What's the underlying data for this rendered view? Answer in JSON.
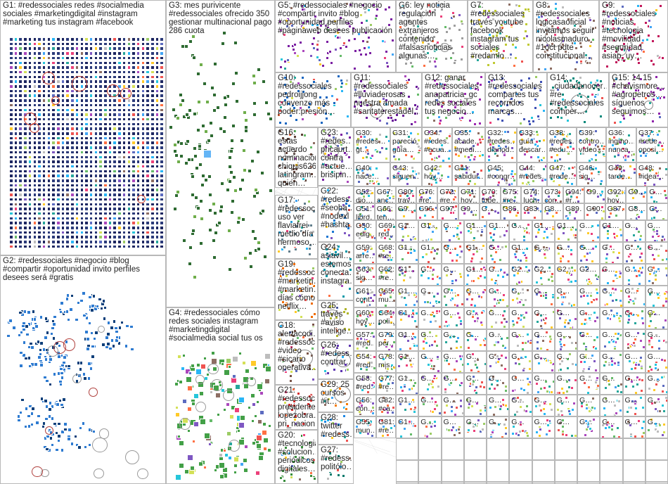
{
  "graph": {
    "groups": [
      {
        "id": "G1",
        "label": "G1: #redessociales redes #socialmedia sociales #marketingdigital #instagram #marketing tus instagram #facebook",
        "color": "#2a3a8c",
        "nodeColor": "#1d2660",
        "style": "grid",
        "rings": "#c0392b"
      },
      {
        "id": "G2",
        "label": "G2: #redessociales #negocio #blog #compartir #oportunidad invito perfiles desees será #gratis",
        "color": "#1c5aa8",
        "nodeColor": "#2e7bd1",
        "style": "clusters"
      },
      {
        "id": "G3",
        "label": "G3: mes purivicente #redessociales ofrecido 350 gestionar multinacional pago 286 cuota",
        "color": "#2e7d32",
        "nodeColor": "#3a8a3f",
        "style": "star"
      },
      {
        "id": "G4",
        "label": "G4: #redessociales cómo redes sociales instagram #marketingdigital #socialmedia social tus os",
        "color": "#2e7d32",
        "nodeColor": "#4caf50",
        "style": "cluster-scatter"
      },
      {
        "id": "G5",
        "label": "G5: #redessociales #negocio #compartir invito #blog #oportunidad perfiles #páginaweb desees publicación",
        "color": "#7b1fa2",
        "nodeColor": "#7b1fa2",
        "style": "mini"
      },
      {
        "id": "G6",
        "label": "G6: ley noticia regulación agentes extranjeros contenido #falsasnoticias algunas…",
        "color": "#444",
        "nodeColor": "#9e9e9e",
        "style": "mini"
      },
      {
        "id": "G7",
        "label": "G7: #redessociales través youtube facebook instagram tus sociales #redamlo…",
        "color": "#8e24aa",
        "nodeColor": "#c0ca33",
        "style": "mini"
      },
      {
        "id": "G8",
        "label": "G8: #redessociales logicasaoficial invitamos seguir nicolasmaduro #1oct pdte constitucional…",
        "color": "#555",
        "nodeColor": "#8d6e63",
        "style": "mini"
      },
      {
        "id": "G9",
        "label": "G9: #redessociales #noticias #tecnologia #movilidad #seguridad asiap_uy…",
        "color": "#ad1457",
        "nodeColor": "#c2185b",
        "style": "mini"
      },
      {
        "id": "G10",
        "label": "G10: #redessociales pedroijjong convenzo más poder:presión…",
        "color": "#555",
        "nodeColor": "#1565c0",
        "style": "mini"
      },
      {
        "id": "G11",
        "label": "G11: #redessociales #lluviaderosas nuestra amada #santaterestadel…",
        "color": "#6a1b9a",
        "nodeColor": "#6a1b9a",
        "style": "mini"
      },
      {
        "id": "G12",
        "label": "G12: ganar #redessociales anapatricia_gc redes sociales tus negocio…",
        "color": "#455a64",
        "nodeColor": "#9c27b0",
        "style": "mini"
      },
      {
        "id": "G13",
        "label": "G13: #redessociales compartes tus recorridos marcas…",
        "color": "#455a64",
        "nodeColor": "#3f51b5",
        "style": "mini"
      },
      {
        "id": "G14",
        "label": "G14: _ciudadanocer… #re #redessociales comper…",
        "color": "#455a64",
        "nodeColor": "#00897b",
        "style": "mini"
      },
      {
        "id": "G15",
        "label": "G15: 14 15 #chavismore… #agropetros… síguenos seguimos…",
        "color": "#455a64",
        "nodeColor": "#8e24aa",
        "style": "mini"
      },
      {
        "id": "G16",
        "label": "G16: estas acuerdo nominación chiquis626 latingram… quien…",
        "color": "#455a64",
        "nodeColor": "#5d4037",
        "style": "mini"
      },
      {
        "id": "G17",
        "label": "G17: #redessoc… uso ver flaviafrei medio día hermoso…",
        "color": "#455a64",
        "nodeColor": "#607d8b",
        "style": "mini"
      },
      {
        "id": "G18",
        "label": "G18: alertacodi… #redessoc… #video #sicario operativa…",
        "color": "#455a64",
        "nodeColor": "#795548",
        "style": "mini"
      },
      {
        "id": "G19",
        "label": "G19: #redessoc… #marketin… #marketin… días cómo netflix…",
        "color": "#455a64",
        "nodeColor": "#ef6c00",
        "style": "mini"
      },
      {
        "id": "G20",
        "label": "G20: #tecnologia #solucion… periódicos digitales…",
        "color": "#455a64",
        "nodeColor": "#388e3c",
        "style": "mini"
      },
      {
        "id": "G21",
        "label": "G21: #redessoc… presidente lopezobra… pri_nacion…",
        "color": "#455a64",
        "nodeColor": "#d32f2f",
        "style": "mini"
      },
      {
        "id": "G22",
        "label": "G22: #redess… #seoha… #nodexl #hashta…",
        "color": "#455a64",
        "nodeColor": "#1976d2",
        "style": "mini"
      },
      {
        "id": "G23",
        "label": "G23: #redes… pricaurt… contra #actue… brisipin…",
        "color": "#455a64",
        "nodeColor": "#7b1fa2",
        "style": "mini"
      },
      {
        "id": "G24",
        "label": "G24: asiavil… estemos conecta… instagra…",
        "color": "#455a64",
        "nodeColor": "#0097a7",
        "style": "mini"
      },
      {
        "id": "G25",
        "label": "G25: través #aviso intelige…",
        "color": "#455a64",
        "nodeColor": "#afb42b",
        "style": "mini"
      },
      {
        "id": "G26",
        "label": "G26: #redess… contrar…",
        "color": "#455a64",
        "nodeColor": "#5e35b1",
        "style": "mini"
      },
      {
        "id": "G27",
        "label": "G27: #redess… politólo…",
        "color": "#455a64",
        "nodeColor": "#00796b",
        "style": "mini"
      },
      {
        "id": "G28",
        "label": "G28: twitter #redess…",
        "color": "#455a64",
        "nodeColor": "#1e88e5",
        "style": "mini"
      },
      {
        "id": "G29",
        "label": "G29: 25 cursos #it…",
        "color": "#455a64",
        "nodeColor": "#f57c00",
        "style": "mini"
      }
    ],
    "tiles": [
      "G30: #redes… gt…",
      "G31: pareció guía…",
      "G34: #redes… #ecua…",
      "G35: acade… #medi…",
      "G32: #redes… diariod…",
      "G33: guía descar…",
      "G38: #redes… #edu…",
      "G39: contro… vídeo…",
      "G36: ingmo… nunca…",
      "G37: #rede… oposi…",
      "G40: nace…",
      "G43: siguen…",
      "G42: hoy…",
      "G41: sabidur…",
      "G45: #congr…",
      "G44: #redes…",
      "G47: #rede…",
      "G46: sig…",
      "G49: tarde…",
      "G48: #idea…",
      "G52: dio…",
      "G67: anc…",
      "G80: trav…",
      "G76: #re…",
      "G72: #re…",
      "G71: hoy…",
      "G70: tobe…",
      "G75: #re…",
      "G74: luch…",
      "G73: con…",
      "G94: #r…",
      "G9…",
      "G92: hoy…",
      "G9…",
      "G…",
      "G51: libro…",
      "G66: ten…",
      "G9…",
      "G96…",
      "G97…",
      "G9…",
      "G…",
      "G86…",
      "G83…",
      "G8…",
      "G89…",
      "G90…",
      "G87…",
      "G8…",
      "G…",
      "G50: edig…",
      "G69: red…",
      "G1…",
      "G1…",
      "G…",
      "G1…",
      "G1…",
      "G…",
      "G1…",
      "G1…",
      "G…",
      "G1…",
      "G…",
      "G…",
      "G59: arre…",
      "G68: #re…",
      "G1…",
      "G1…",
      "G…",
      "G1…",
      "G…",
      "G1…",
      "G…",
      "G…",
      "G…",
      "G…",
      "G…",
      "G…",
      "G63: sig…",
      "G62: #re…",
      "G1…",
      "G…",
      "G…",
      "G1…",
      "G…",
      "G2…",
      "G2…",
      "G2…",
      "G2…",
      "G…",
      "G…",
      "G…",
      "G61: cont…",
      "G65: mu…",
      "G1…",
      "G…",
      "G…",
      "G…",
      "G…",
      "G…",
      "G…",
      "G…",
      "G…",
      "G…",
      "G…",
      "G…",
      "G60: hoy…",
      "G64: poli…",
      "G1…",
      "G…",
      "G…",
      "G…",
      "G…",
      "G…",
      "G…",
      "G…",
      "G…",
      "G…",
      "G…",
      "G…",
      "G57: #red…",
      "G79: per…",
      "G1…",
      "G…",
      "G…",
      "G…",
      "G…",
      "G…",
      "G…",
      "G…",
      "G…",
      "G…",
      "G…",
      "G…",
      "G54: #red…",
      "G78: mis…",
      "G1…",
      "G…",
      "G…",
      "G…",
      "G…",
      "G…",
      "G…",
      "G…",
      "G…",
      "G…",
      "G…",
      "G…",
      "G58: #red…",
      "G77: #re…",
      "G1…",
      "G…",
      "G…",
      "G…",
      "G…",
      "G…",
      "G…",
      "G…",
      "G…",
      "G…",
      "G…",
      "G…",
      "G56: con…",
      "G82: #ca…",
      "G1…",
      "G…",
      "G…",
      "G…",
      "G…",
      "G…",
      "G…",
      "G…",
      "G…",
      "G…",
      "G…",
      "G…",
      "G55: mun…",
      "G81: #re…",
      "G1…",
      "G…",
      "G…",
      "G…",
      "G…",
      "G…",
      "G…",
      "G…",
      "G…",
      "G…",
      "G…",
      "G…"
    ]
  }
}
